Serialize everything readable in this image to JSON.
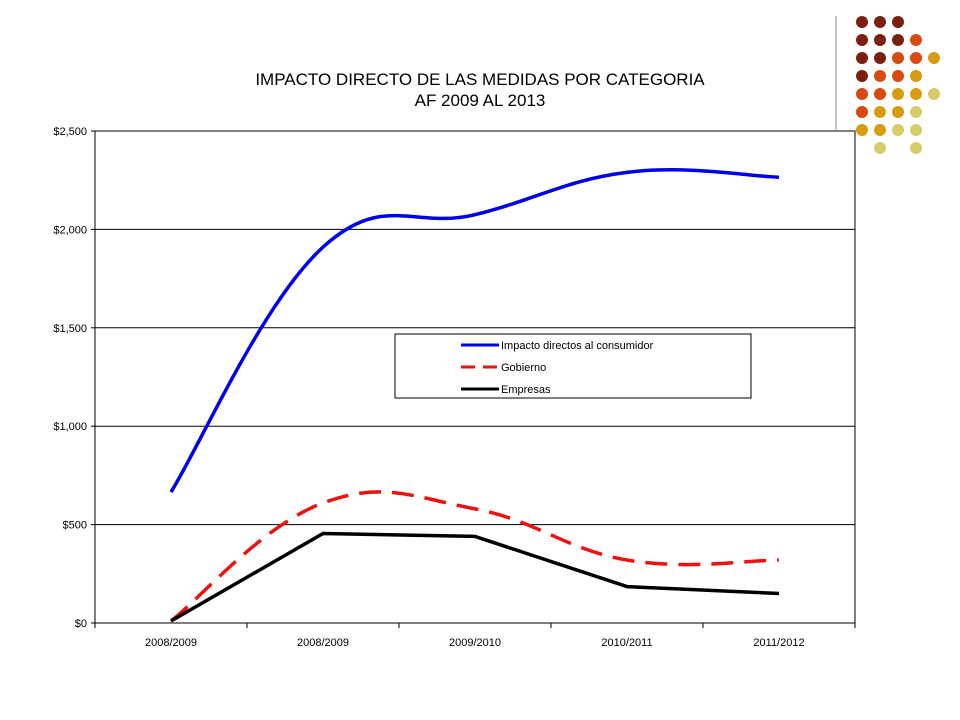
{
  "chart_data": {
    "type": "line",
    "title": "IMPACTO DIRECTO DE LAS MEDIDAS POR CATEGORIA",
    "subtitle": "AF 2009 AL 2013",
    "categories": [
      "2008/2009",
      "2008/2009",
      "2009/2010",
      "2010/2011",
      "2011/2012"
    ],
    "y_ticks": [
      "$0",
      "$500",
      "$1,000",
      "$1,500",
      "$2,000",
      "$2,500"
    ],
    "ylim": [
      0,
      2500
    ],
    "grid": true,
    "legend_position": "center-right",
    "series": [
      {
        "name": "Impacto directos al consumidor",
        "color": "#0000ee",
        "style": "solid",
        "smooth": true,
        "values": [
          665,
          1910,
          2075,
          2290,
          2265
        ]
      },
      {
        "name": "Gobierno",
        "color": "#ee1111",
        "style": "dashed",
        "smooth": true,
        "values": [
          10,
          610,
          580,
          320,
          320
        ]
      },
      {
        "name": "Empresas",
        "color": "#000000",
        "style": "solid",
        "smooth": false,
        "values": [
          10,
          455,
          440,
          185,
          150
        ]
      }
    ]
  },
  "decor": {
    "dot_colors": [
      "#7b1f0e",
      "#d84a12",
      "#d79c10",
      "#d6cc6a"
    ]
  }
}
